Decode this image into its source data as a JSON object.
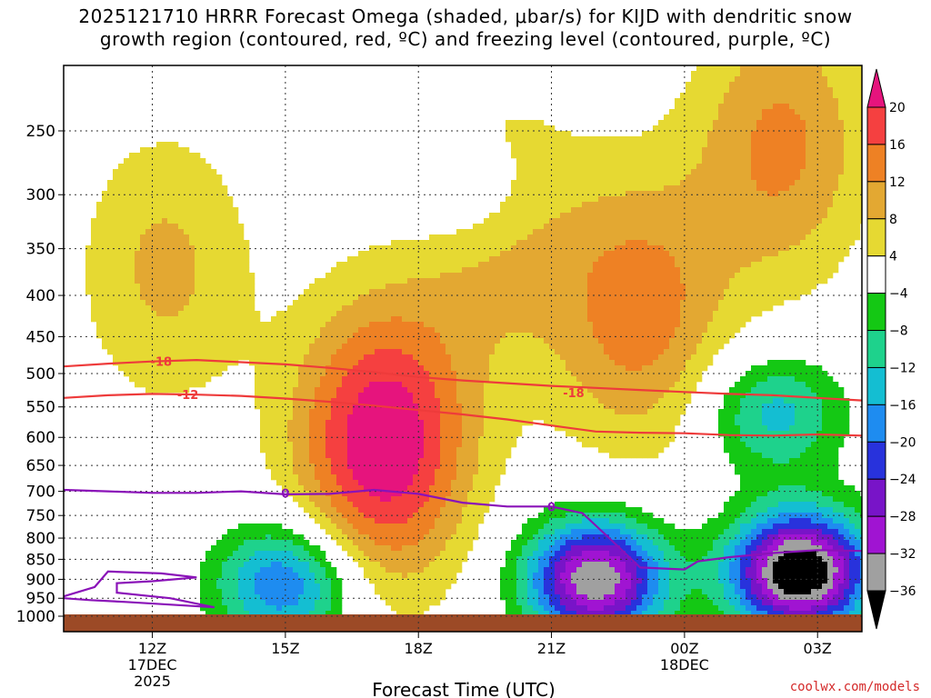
{
  "title": {
    "line1": "2025121710 HRRR Forecast Omega (shaded, μbar/s) for KIJD with dendritic snow",
    "line2": "growth region (contoured, red, ºC) and freezing level (contoured, purple, ºC)"
  },
  "credit": "coolwx.com/models",
  "colors": {
    "ground": "#9c4a26",
    "grid": "#333333",
    "dgz_contour": "#ee3b3b",
    "freezing_contour": "#8a12b8"
  },
  "chart_data": {
    "type": "heatmap",
    "title": "2025121710 HRRR Forecast Omega (shaded, μbar/s) for KIJD with dendritic snow growth region (contoured, red, ºC) and freezing level (contoured, purple, ºC)",
    "xlabel": "Forecast Time (UTC)",
    "ylabel": "",
    "x_range_hours_from_10Z": [
      0,
      18
    ],
    "x_ticks": [
      {
        "label": "12Z",
        "sub1": "17DEC",
        "sub2": "2025",
        "hour": 2
      },
      {
        "label": "15Z",
        "sub1": "",
        "sub2": "",
        "hour": 5
      },
      {
        "label": "18Z",
        "sub1": "",
        "sub2": "",
        "hour": 8
      },
      {
        "label": "21Z",
        "sub1": "",
        "sub2": "",
        "hour": 11
      },
      {
        "label": "00Z",
        "sub1": "18DEC",
        "sub2": "",
        "hour": 14
      },
      {
        "label": "03Z",
        "sub1": "",
        "sub2": "",
        "hour": 17
      }
    ],
    "y_axis": "pressure (hPa, log scale, reversed)",
    "y_range": [
      1000,
      200
    ],
    "y_ticks": [
      250,
      300,
      350,
      400,
      450,
      500,
      550,
      600,
      650,
      700,
      750,
      800,
      850,
      900,
      950,
      1000
    ],
    "colorbar": {
      "labels": [
        "20",
        "16",
        "12",
        "8",
        "4",
        "−4",
        "−8",
        "−12",
        "−16",
        "−20",
        "−24",
        "−28",
        "−32",
        "−36"
      ],
      "levels": [
        20,
        16,
        12,
        8,
        4,
        -4,
        -8,
        -12,
        -16,
        -20,
        -24,
        -28,
        -32,
        -36
      ],
      "bins": [
        {
          "from": 20,
          "to": null,
          "color": "#e6147d"
        },
        {
          "from": 16,
          "to": 20,
          "color": "#f54040"
        },
        {
          "from": 12,
          "to": 16,
          "color": "#ee8124"
        },
        {
          "from": 8,
          "to": 12,
          "color": "#e3a832"
        },
        {
          "from": 4,
          "to": 8,
          "color": "#e6d932"
        },
        {
          "from": -4,
          "to": 4,
          "color": "#ffffff"
        },
        {
          "from": -8,
          "to": -4,
          "color": "#14c814"
        },
        {
          "from": -12,
          "to": -8,
          "color": "#1ed28c"
        },
        {
          "from": -16,
          "to": -12,
          "color": "#14bed2"
        },
        {
          "from": -20,
          "to": -16,
          "color": "#1e8cf0"
        },
        {
          "from": -24,
          "to": -20,
          "color": "#2832dc"
        },
        {
          "from": -28,
          "to": -24,
          "color": "#7814c8"
        },
        {
          "from": -32,
          "to": -28,
          "color": "#a014d2"
        },
        {
          "from": -36,
          "to": -32,
          "color": "#a0a0a0"
        },
        {
          "from": null,
          "to": -36,
          "color": "#000000"
        }
      ]
    },
    "contour_labels": {
      "dgz": [
        "-18",
        "-12",
        "-18"
      ],
      "freezing": [
        "0",
        "0"
      ]
    },
    "dgz_contours": [
      {
        "value": -18,
        "points": [
          [
            0,
            490
          ],
          [
            1,
            486
          ],
          [
            2,
            483
          ],
          [
            3,
            481
          ],
          [
            4,
            484
          ],
          [
            5,
            487
          ],
          [
            6,
            492
          ],
          [
            7,
            498
          ],
          [
            8,
            505
          ],
          [
            9,
            510
          ],
          [
            10,
            514
          ],
          [
            11,
            518
          ],
          [
            12,
            521
          ],
          [
            13,
            524
          ],
          [
            14,
            527
          ],
          [
            15,
            530
          ],
          [
            16,
            532
          ],
          [
            17,
            536
          ],
          [
            18,
            540
          ]
        ]
      },
      {
        "value": -12,
        "points": [
          [
            0,
            536
          ],
          [
            1,
            532
          ],
          [
            2,
            530
          ],
          [
            3,
            531
          ],
          [
            4,
            533
          ],
          [
            5,
            537
          ],
          [
            6,
            542
          ],
          [
            7,
            548
          ],
          [
            8,
            555
          ],
          [
            9,
            562
          ],
          [
            10,
            570
          ],
          [
            11,
            580
          ],
          [
            12,
            590
          ],
          [
            13,
            592
          ],
          [
            14,
            593
          ],
          [
            15,
            596
          ],
          [
            16,
            597
          ],
          [
            17,
            595
          ],
          [
            18,
            597
          ]
        ]
      }
    ],
    "freezing_contours": [
      {
        "value": 0,
        "points": [
          [
            0,
            697
          ],
          [
            1,
            700
          ],
          [
            2,
            703
          ],
          [
            3,
            703
          ],
          [
            4,
            700
          ],
          [
            5,
            706
          ],
          [
            6,
            705
          ],
          [
            7,
            697
          ],
          [
            8,
            705
          ],
          [
            9,
            723
          ],
          [
            10,
            731
          ],
          [
            11,
            731
          ],
          [
            11.7,
            745
          ],
          [
            12.3,
            800
          ],
          [
            13,
            870
          ],
          [
            14,
            875
          ],
          [
            14.3,
            855
          ],
          [
            15,
            845
          ],
          [
            16,
            835
          ],
          [
            17,
            828
          ],
          [
            18,
            830
          ]
        ]
      }
    ],
    "omega_features": [
      {
        "kind": "rise",
        "hour": 7.2,
        "p": 610,
        "peak": 24
      },
      {
        "kind": "rise",
        "hour": 2.3,
        "p": 370,
        "peak": 9
      },
      {
        "kind": "rise",
        "hour": 9.8,
        "p": 330,
        "peak": 9
      },
      {
        "kind": "rise",
        "hour": 13.0,
        "p": 420,
        "peak": 14
      },
      {
        "kind": "rise",
        "hour": 16.2,
        "p": 260,
        "peak": 13
      },
      {
        "kind": "sink",
        "hour": 16.6,
        "p": 880,
        "peak": -42
      },
      {
        "kind": "sink",
        "hour": 12.0,
        "p": 900,
        "peak": -36
      },
      {
        "kind": "sink",
        "hour": 5.0,
        "p": 910,
        "peak": -21
      },
      {
        "kind": "sink",
        "hour": 16.0,
        "p": 560,
        "peak": -14
      },
      {
        "kind": "sink",
        "hour": 9.2,
        "p": 300,
        "peak": -7
      }
    ]
  }
}
